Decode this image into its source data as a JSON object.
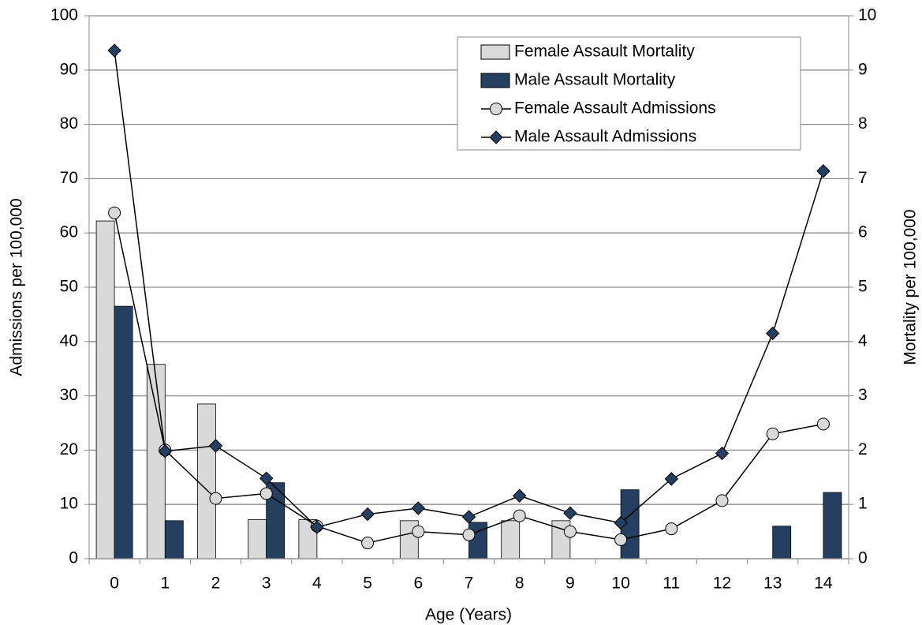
{
  "chart_data": {
    "type": "bar_line",
    "x_label": "Age (Years)",
    "y_label": "Admissions per 100,000",
    "y2_label": "Mortality per 100,000",
    "categories": [
      "0",
      "1",
      "2",
      "3",
      "4",
      "5",
      "6",
      "7",
      "8",
      "9",
      "10",
      "11",
      "12",
      "13",
      "14"
    ],
    "ylim": [
      0,
      100
    ],
    "yticks": [
      0,
      10,
      20,
      30,
      40,
      50,
      60,
      70,
      80,
      90,
      100
    ],
    "y2lim": [
      0,
      10
    ],
    "y2ticks": [
      0,
      1,
      2,
      3,
      4,
      5,
      6,
      7,
      8,
      9,
      10
    ],
    "grid": true,
    "legend": "top-right",
    "series": [
      {
        "name": "Female Assault Mortality",
        "type": "bar",
        "axis": "y2",
        "color": "#d9d9d9",
        "values": [
          6.22,
          3.58,
          2.85,
          0.72,
          0.72,
          0,
          0.7,
          0,
          0.7,
          0.7,
          0,
          0,
          0,
          0,
          0
        ]
      },
      {
        "name": "Male Assault Mortality",
        "type": "bar",
        "axis": "y2",
        "color": "#243f60",
        "values": [
          4.65,
          0.7,
          0,
          1.4,
          0,
          0,
          0,
          0.67,
          0,
          0,
          1.27,
          0,
          0,
          0.6,
          1.22
        ]
      },
      {
        "name": "Female Assault Admissions",
        "type": "line",
        "marker": "circle",
        "color": "#d9d9d9",
        "values": [
          63.7,
          20,
          11.1,
          12,
          6,
          2.9,
          5,
          4.4,
          7.9,
          5,
          3.5,
          5.5,
          10.7,
          23,
          24.8
        ]
      },
      {
        "name": "Male Assault Admissions",
        "type": "line",
        "marker": "diamond",
        "color": "#243f60",
        "values": [
          93.6,
          19.8,
          20.8,
          14.8,
          5.8,
          8.2,
          9.3,
          7.7,
          11.6,
          8.4,
          6.6,
          14.7,
          19.4,
          41.5,
          71.4
        ]
      }
    ]
  }
}
